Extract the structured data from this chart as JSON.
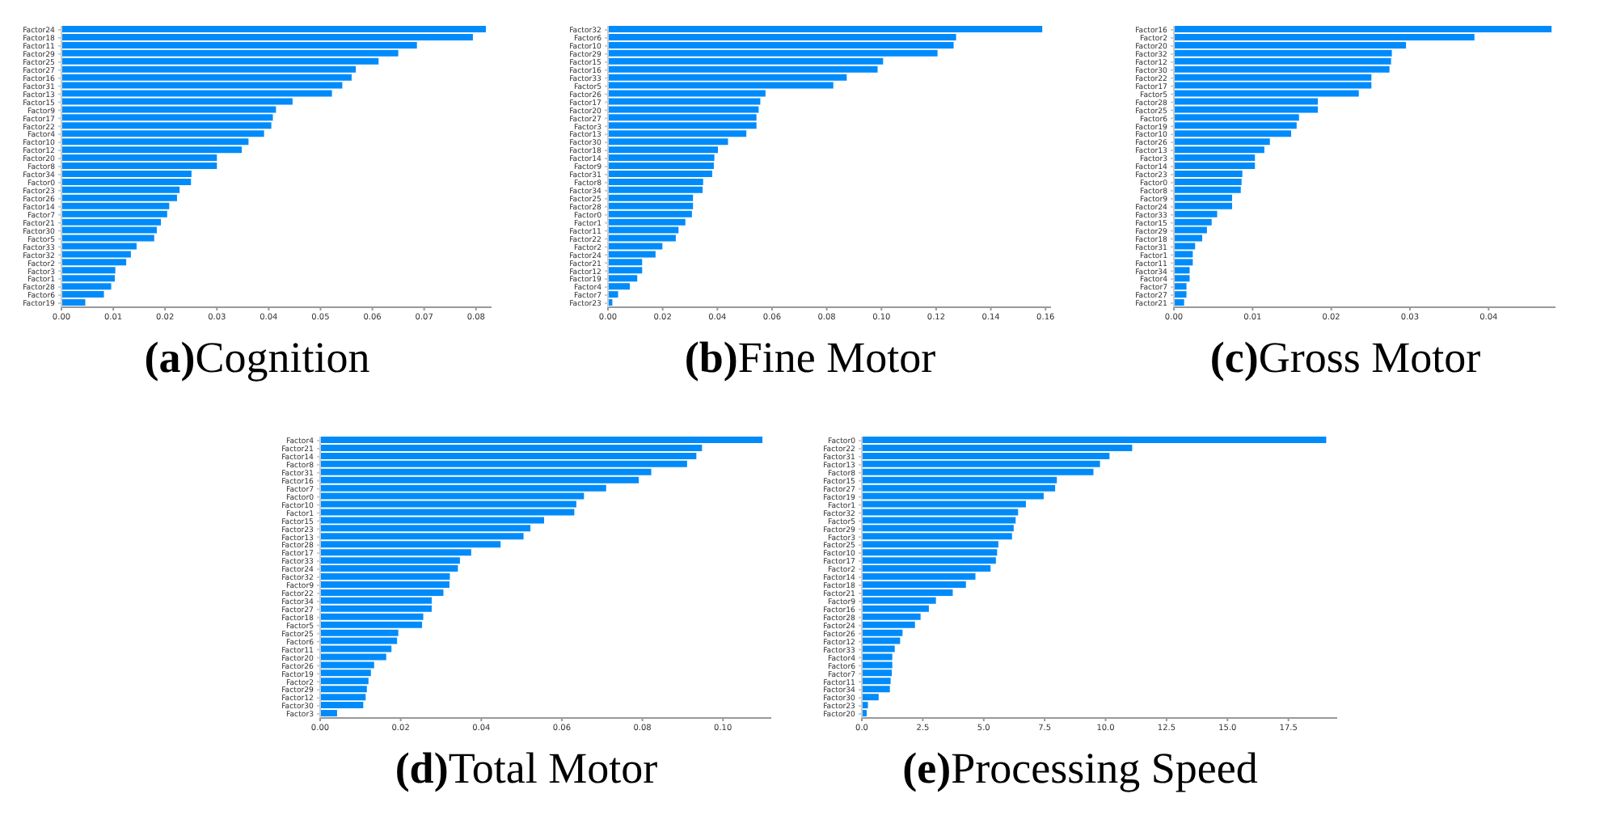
{
  "chart_data": [
    {
      "type": "bar",
      "orientation": "horizontal",
      "title": "(a)Cognition",
      "color": "#008bfb",
      "categories": [
        "Factor24",
        "Factor18",
        "Factor11",
        "Factor29",
        "Factor25",
        "Factor27",
        "Factor16",
        "Factor31",
        "Factor13",
        "Factor15",
        "Factor9",
        "Factor17",
        "Factor22",
        "Factor4",
        "Factor10",
        "Factor12",
        "Factor20",
        "Factor8",
        "Factor34",
        "Factor0",
        "Factor23",
        "Factor26",
        "Factor14",
        "Factor7",
        "Factor21",
        "Factor30",
        "Factor5",
        "Factor33",
        "Factor32",
        "Factor2",
        "Factor3",
        "Factor1",
        "Factor28",
        "Factor6",
        "Factor19"
      ],
      "values": [
        0.0819,
        0.0794,
        0.0686,
        0.065,
        0.0612,
        0.0568,
        0.056,
        0.0542,
        0.0522,
        0.0446,
        0.0414,
        0.0408,
        0.0405,
        0.0391,
        0.0361,
        0.0348,
        0.03,
        0.03,
        0.0251,
        0.025,
        0.0228,
        0.0223,
        0.0208,
        0.0204,
        0.0192,
        0.0184,
        0.0179,
        0.0145,
        0.0134,
        0.0125,
        0.0104,
        0.0103,
        0.0096,
        0.0082,
        0.0046
      ],
      "xlim": [
        0,
        0.083
      ],
      "xticks": [
        {
          "value": 0,
          "label": "0.00"
        },
        {
          "value": 0.01,
          "label": "0.01"
        },
        {
          "value": 0.02,
          "label": "0.02"
        },
        {
          "value": 0.03,
          "label": "0.03"
        },
        {
          "value": 0.04,
          "label": "0.04"
        },
        {
          "value": 0.05,
          "label": "0.05"
        },
        {
          "value": 0.06,
          "label": "0.06"
        },
        {
          "value": 0.07,
          "label": "0.07"
        },
        {
          "value": 0.08,
          "label": "0.08"
        }
      ]
    },
    {
      "type": "bar",
      "orientation": "horizontal",
      "title": "(b)Fine Motor",
      "color": "#008bfb",
      "categories": [
        "Factor32",
        "Factor6",
        "Factor10",
        "Factor29",
        "Factor15",
        "Factor16",
        "Factor33",
        "Factor5",
        "Factor26",
        "Factor17",
        "Factor20",
        "Factor27",
        "Factor3",
        "Factor13",
        "Factor30",
        "Factor18",
        "Factor14",
        "Factor9",
        "Factor31",
        "Factor8",
        "Factor34",
        "Factor25",
        "Factor28",
        "Factor0",
        "Factor1",
        "Factor11",
        "Factor22",
        "Factor2",
        "Factor24",
        "Factor21",
        "Factor12",
        "Factor19",
        "Factor4",
        "Factor7",
        "Factor23"
      ],
      "values": [
        0.1588,
        0.1273,
        0.1264,
        0.1205,
        0.1006,
        0.0986,
        0.0873,
        0.0824,
        0.0576,
        0.0557,
        0.0551,
        0.0543,
        0.0543,
        0.0506,
        0.0439,
        0.0402,
        0.0389,
        0.0387,
        0.0381,
        0.0348,
        0.0346,
        0.0311,
        0.0311,
        0.0307,
        0.0283,
        0.0258,
        0.0248,
        0.0199,
        0.0174,
        0.0125,
        0.0125,
        0.0107,
        0.008,
        0.0037,
        0.0016
      ],
      "xlim": [
        0,
        0.162
      ],
      "xticks": [
        {
          "value": 0,
          "label": "0.00"
        },
        {
          "value": 0.02,
          "label": "0.02"
        },
        {
          "value": 0.04,
          "label": "0.04"
        },
        {
          "value": 0.06,
          "label": "0.06"
        },
        {
          "value": 0.08,
          "label": "0.08"
        },
        {
          "value": 0.1,
          "label": "0.10"
        },
        {
          "value": 0.12,
          "label": "0.12"
        },
        {
          "value": 0.14,
          "label": "0.14"
        },
        {
          "value": 0.16,
          "label": "0.16"
        }
      ]
    },
    {
      "type": "bar",
      "orientation": "horizontal",
      "title": "(c)Gross Motor",
      "color": "#008bfb",
      "categories": [
        "Factor16",
        "Factor2",
        "Factor20",
        "Factor32",
        "Factor12",
        "Factor30",
        "Factor22",
        "Factor17",
        "Factor5",
        "Factor28",
        "Factor25",
        "Factor6",
        "Factor19",
        "Factor10",
        "Factor26",
        "Factor13",
        "Factor3",
        "Factor14",
        "Factor23",
        "Factor0",
        "Factor8",
        "Factor9",
        "Factor24",
        "Factor33",
        "Factor15",
        "Factor29",
        "Factor18",
        "Factor31",
        "Factor1",
        "Factor11",
        "Factor34",
        "Factor4",
        "Factor7",
        "Factor27",
        "Factor21"
      ],
      "values": [
        0.048,
        0.0382,
        0.0295,
        0.0277,
        0.0276,
        0.0274,
        0.0251,
        0.0251,
        0.0235,
        0.0183,
        0.0183,
        0.0159,
        0.0156,
        0.0149,
        0.0122,
        0.0115,
        0.0103,
        0.0103,
        0.0087,
        0.0086,
        0.0085,
        0.0074,
        0.0074,
        0.0055,
        0.0048,
        0.0042,
        0.0036,
        0.0027,
        0.0024,
        0.0024,
        0.002,
        0.002,
        0.0016,
        0.0016,
        0.0013
      ],
      "xlim": [
        0,
        0.0485
      ],
      "xticks": [
        {
          "value": 0,
          "label": "0.00"
        },
        {
          "value": 0.01,
          "label": "0.01"
        },
        {
          "value": 0.02,
          "label": "0.02"
        },
        {
          "value": 0.03,
          "label": "0.03"
        },
        {
          "value": 0.04,
          "label": "0.04"
        }
      ]
    },
    {
      "type": "bar",
      "orientation": "horizontal",
      "title": "(d)Total Motor",
      "color": "#008bfb",
      "categories": [
        "Factor4",
        "Factor21",
        "Factor14",
        "Factor8",
        "Factor31",
        "Factor16",
        "Factor7",
        "Factor0",
        "Factor10",
        "Factor1",
        "Factor15",
        "Factor23",
        "Factor13",
        "Factor28",
        "Factor17",
        "Factor33",
        "Factor24",
        "Factor32",
        "Factor9",
        "Factor22",
        "Factor34",
        "Factor27",
        "Factor18",
        "Factor5",
        "Factor25",
        "Factor6",
        "Factor11",
        "Factor20",
        "Factor26",
        "Factor19",
        "Factor2",
        "Factor29",
        "Factor12",
        "Factor30",
        "Factor3"
      ],
      "values": [
        0.1098,
        0.0948,
        0.0934,
        0.0911,
        0.0822,
        0.0791,
        0.071,
        0.0655,
        0.0636,
        0.0631,
        0.0556,
        0.0522,
        0.0505,
        0.0448,
        0.0375,
        0.0347,
        0.0342,
        0.0322,
        0.0321,
        0.0306,
        0.0277,
        0.0277,
        0.0256,
        0.0253,
        0.0194,
        0.0191,
        0.0177,
        0.0164,
        0.0134,
        0.0126,
        0.012,
        0.0116,
        0.0113,
        0.0107,
        0.0042
      ],
      "xlim": [
        0,
        0.112
      ],
      "xticks": [
        {
          "value": 0,
          "label": "0.00"
        },
        {
          "value": 0.02,
          "label": "0.02"
        },
        {
          "value": 0.04,
          "label": "0.04"
        },
        {
          "value": 0.06,
          "label": "0.06"
        },
        {
          "value": 0.08,
          "label": "0.08"
        },
        {
          "value": 0.1,
          "label": "0.10"
        }
      ]
    },
    {
      "type": "bar",
      "orientation": "horizontal",
      "title": "(e)Processing Speed",
      "color": "#008bfb",
      "categories": [
        "Factor0",
        "Factor22",
        "Factor31",
        "Factor13",
        "Factor8",
        "Factor15",
        "Factor27",
        "Factor19",
        "Factor1",
        "Factor32",
        "Factor5",
        "Factor29",
        "Factor3",
        "Factor25",
        "Factor10",
        "Factor17",
        "Factor2",
        "Factor14",
        "Factor18",
        "Factor21",
        "Factor9",
        "Factor16",
        "Factor28",
        "Factor24",
        "Factor26",
        "Factor12",
        "Factor33",
        "Factor4",
        "Factor6",
        "Factor7",
        "Factor11",
        "Factor34",
        "Factor30",
        "Factor23",
        "Factor20"
      ],
      "values": [
        19.05,
        11.09,
        10.16,
        9.77,
        9.5,
        8.0,
        7.93,
        7.46,
        6.73,
        6.41,
        6.31,
        6.23,
        6.16,
        5.6,
        5.55,
        5.5,
        5.28,
        4.66,
        4.27,
        3.73,
        3.04,
        2.75,
        2.41,
        2.18,
        1.67,
        1.57,
        1.35,
        1.25,
        1.25,
        1.23,
        1.18,
        1.15,
        0.69,
        0.25,
        0.2
      ],
      "xlim": [
        0,
        19.5
      ],
      "xticks": [
        {
          "value": 0,
          "label": "0.0"
        },
        {
          "value": 2.5,
          "label": "2.5"
        },
        {
          "value": 5,
          "label": "5.0"
        },
        {
          "value": 7.5,
          "label": "7.5"
        },
        {
          "value": 10,
          "label": "10.0"
        },
        {
          "value": 12.5,
          "label": "12.5"
        },
        {
          "value": 15,
          "label": "15.0"
        },
        {
          "value": 17.5,
          "label": "17.5"
        }
      ]
    }
  ]
}
